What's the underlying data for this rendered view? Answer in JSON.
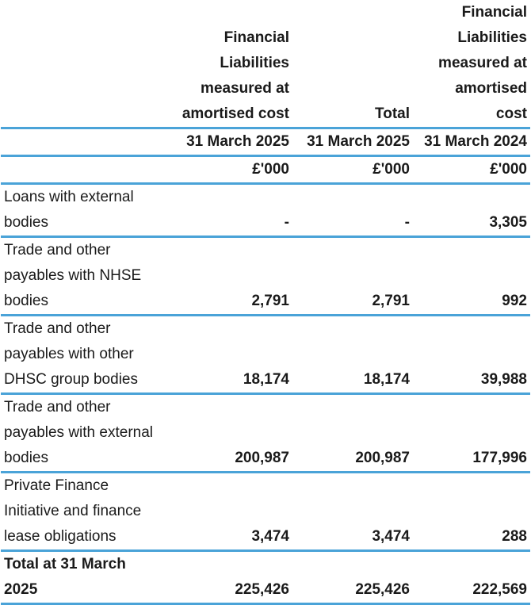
{
  "header": {
    "col1": [
      "Financial",
      "Liabilities",
      "measured at",
      "amortised cost"
    ],
    "col2": [
      "Total"
    ],
    "col3": [
      "Financial",
      "Liabilities",
      "measured at",
      "amortised",
      "cost"
    ],
    "dates": [
      "31 March 2025",
      "31 March 2025",
      "31 March 2024"
    ],
    "units": [
      "£'000",
      "£'000",
      "£'000"
    ]
  },
  "rows": [
    {
      "label": [
        "Loans with external",
        "bodies"
      ],
      "values": [
        "-",
        "-",
        "3,305"
      ]
    },
    {
      "label": [
        "Trade and other",
        "payables with NHSE",
        "bodies"
      ],
      "values": [
        "2,791",
        "2,791",
        "992"
      ]
    },
    {
      "label": [
        "Trade and other",
        "payables with other",
        "DHSC group bodies"
      ],
      "values": [
        "18,174",
        "18,174",
        "39,988"
      ]
    },
    {
      "label": [
        "Trade and other",
        "payables with external",
        "bodies"
      ],
      "values": [
        "200,987",
        "200,987",
        "177,996"
      ]
    },
    {
      "label": [
        "Private Finance",
        "Initiative and finance",
        "lease obligations"
      ],
      "values": [
        "3,474",
        "3,474",
        "288"
      ]
    },
    {
      "label": [
        "Total at 31 March",
        "2025"
      ],
      "values": [
        "225,426",
        "225,426",
        "222,569"
      ]
    }
  ]
}
